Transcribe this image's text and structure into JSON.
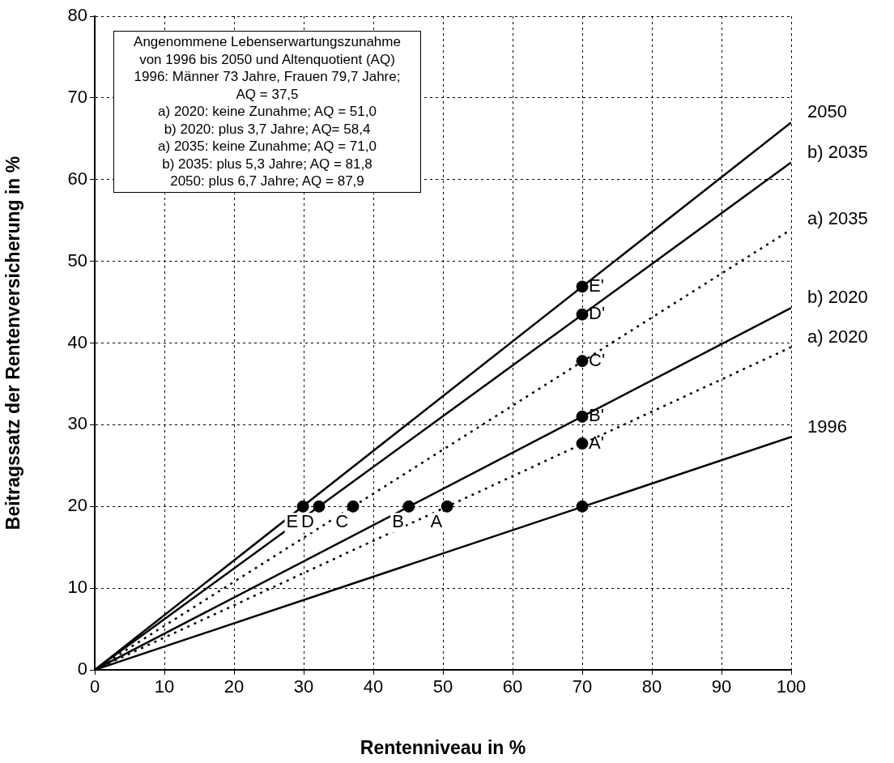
{
  "chart_data": {
    "type": "line",
    "xlabel": "Rentenniveau in %",
    "ylabel": "Beitragssatz der Rentenversicherung in %",
    "xlim": [
      0,
      100
    ],
    "ylim": [
      0,
      80
    ],
    "xticks": [
      0,
      10,
      20,
      30,
      40,
      50,
      60,
      70,
      80,
      90,
      100
    ],
    "yticks": [
      0,
      10,
      20,
      30,
      40,
      50,
      60,
      70,
      80
    ],
    "grid": true,
    "legend": false,
    "marker": "none",
    "series": [
      {
        "name": "2050",
        "color": "#000000",
        "x": [
          0,
          100
        ],
        "values": [
          0,
          67
        ],
        "line_style": "solid"
      },
      {
        "name": "b) 2035",
        "color": "#000000",
        "x": [
          0,
          100
        ],
        "values": [
          0,
          62.1
        ],
        "line_style": "solid"
      },
      {
        "name": "a) 2035",
        "color": "#000000",
        "x": [
          0,
          100
        ],
        "values": [
          0,
          53.9
        ],
        "line_style": "dotted"
      },
      {
        "name": "b) 2020",
        "color": "#000000",
        "x": [
          0,
          100
        ],
        "values": [
          0,
          44.3
        ],
        "line_style": "solid"
      },
      {
        "name": "a) 2020",
        "color": "#000000",
        "x": [
          0,
          100
        ],
        "values": [
          0,
          39.5
        ],
        "line_style": "dotted"
      },
      {
        "name": "1996",
        "color": "#000000",
        "x": [
          0,
          100
        ],
        "values": [
          0,
          28.5
        ],
        "line_style": "solid"
      },
      {
        "type": "scatter",
        "color": "#000000",
        "marker": "circle",
        "x": [
          29.9,
          32.2,
          37.1,
          45.1,
          50.6,
          70,
          70,
          70,
          70,
          70,
          70
        ],
        "values": [
          20,
          20,
          20,
          20,
          20,
          20,
          46.9,
          43.5,
          37.8,
          31,
          27.7
        ]
      }
    ],
    "annotations": [
      "Angenommene Lebenserwartungszunahme",
      "von 1996 bis 2050 und Altenquotient (AQ)",
      "1996: Männer 73 Jahre, Frauen 79,7 Jahre;",
      "AQ = 37,5",
      "a) 2020: keine Zunahme; AQ = 51,0",
      "b) 2020: plus 3,7 Jahre; AQ= 58,4",
      "a) 2035: keine Zunahme; AQ = 71,0",
      "b) 2035: plus 5,3 Jahre; AQ = 81,8",
      "2050: plus 6,7 Jahre; AQ = 87,9",
      {
        "text": "E",
        "x": 29.9,
        "y": 20
      },
      {
        "text": "D",
        "x": 32.2,
        "y": 20
      },
      {
        "text": "C",
        "x": 37.1,
        "y": 20
      },
      {
        "text": "B",
        "x": 45.1,
        "y": 20
      },
      {
        "text": "A",
        "x": 50.6,
        "y": 20
      },
      {
        "text": "E'",
        "x": 70,
        "y": 46.9
      },
      {
        "text": "D'",
        "x": 70,
        "y": 43.5
      },
      {
        "text": "C'",
        "x": 70,
        "y": 37.8
      },
      {
        "text": "B'",
        "x": 70,
        "y": 31
      },
      {
        "text": "A'",
        "x": 70,
        "y": 27.7
      }
    ]
  }
}
